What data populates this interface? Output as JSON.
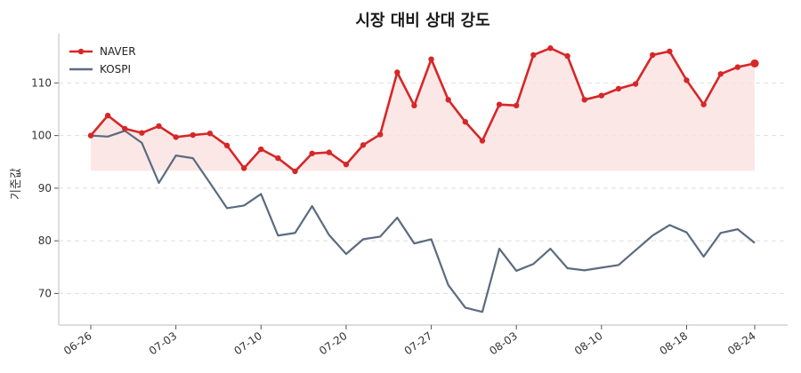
{
  "chart_data": {
    "type": "line",
    "title": "시장 대비 상대 강도",
    "xlabel": "",
    "ylabel": "기준값",
    "x_tick_labels": [
      "06-26",
      "07-03",
      "07-10",
      "07-20",
      "07-27",
      "08-03",
      "08-10",
      "08-18",
      "08-24"
    ],
    "x_tick_index": [
      0,
      5,
      10,
      15,
      20,
      25,
      30,
      35,
      39
    ],
    "ylim": [
      64,
      119
    ],
    "y_ticks": [
      70,
      80,
      90,
      100,
      110
    ],
    "grid": "horizontal-dashed",
    "legend": "top-left",
    "baseline_fill": 93.3,
    "series": [
      {
        "name": "NAVER",
        "color": "#d62728",
        "markers": true,
        "fill": "#fbe1e1",
        "values": [
          100.0,
          103.8,
          101.3,
          100.5,
          101.8,
          99.7,
          100.1,
          100.4,
          98.1,
          93.8,
          97.4,
          95.7,
          93.2,
          96.6,
          96.8,
          94.5,
          98.2,
          100.2,
          112.0,
          105.7,
          114.5,
          106.8,
          102.6,
          99.0,
          105.9,
          105.7,
          115.3,
          116.6,
          115.1,
          106.8,
          107.6,
          108.9,
          109.8,
          115.3,
          116.0,
          110.5,
          105.9,
          111.7,
          113.0,
          113.7
        ]
      },
      {
        "name": "KOSPI",
        "color": "#5c6b80",
        "markers": false,
        "values": [
          100.0,
          99.8,
          100.9,
          98.6,
          91.0,
          96.2,
          95.7,
          91.0,
          86.2,
          86.7,
          88.9,
          81.0,
          81.5,
          86.6,
          81.1,
          77.5,
          80.3,
          80.8,
          84.4,
          79.5,
          80.3,
          71.6,
          67.3,
          66.5,
          78.5,
          74.3,
          75.6,
          78.5,
          74.8,
          74.4,
          74.9,
          75.4,
          78.2,
          81.0,
          83.0,
          81.6,
          77.0,
          81.5,
          82.2,
          79.6
        ]
      }
    ]
  }
}
